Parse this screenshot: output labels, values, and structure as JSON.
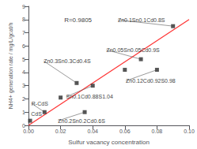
{
  "chart_data": {
    "type": "scatter",
    "xlabel": "Sulfur vacancy concentration",
    "ylabel": "NH4+ generation rate / mg/L/gcat/h",
    "series": [
      {
        "type": "line",
        "color": "#ff3333",
        "x": [
          0.0,
          0.1
        ],
        "values": [
          0.0,
          8.0
        ]
      },
      {
        "type": "scatter",
        "color": "#2a2a2a",
        "marker": "square",
        "x": [
          0.001,
          0.01,
          0.02,
          0.03,
          0.04,
          0.035,
          0.06,
          0.07,
          0.08,
          0.09
        ],
        "values": [
          0.35,
          1.0,
          2.1,
          3.2,
          3.0,
          1.0,
          4.2,
          5.0,
          4.2,
          7.5
        ]
      }
    ],
    "annotations": [
      {
        "text": "CdS",
        "x": 0.001,
        "y": 0.35
      },
      {
        "text": "R-CdS",
        "x": 0.01,
        "y": 1.0
      },
      {
        "text": "Zn0.3Sn0.3Cd0.4S",
        "x": 0.03,
        "y": 3.2
      },
      {
        "text": "Zn0.2Sn0.2Cd0.6S",
        "x": 0.035,
        "y": 1.0
      },
      {
        "text": "Sn0.1Cd0.88S1.04",
        "x": 0.04,
        "y": 3.0
      },
      {
        "text": "Zn0.05Sn0.05Cd0.9S",
        "x": 0.07,
        "y": 5.0
      },
      {
        "text": "Zn0.12Cd0.92S0.98",
        "x": 0.08,
        "y": 4.2
      },
      {
        "text": "Zn0.1Sn0.1Cd0.8S",
        "x": 0.09,
        "y": 7.5
      },
      {
        "text": "R=0.9805",
        "x": 0.02,
        "y": 7.6
      }
    ],
    "xlim": [
      0.0,
      0.1
    ],
    "ylim": [
      0.0,
      9.0
    ],
    "xticks": [
      {
        "value": 0.0,
        "label": "0.00"
      },
      {
        "value": 0.02,
        "label": "0.02"
      },
      {
        "value": 0.04,
        "label": "0.04"
      },
      {
        "value": 0.06,
        "label": "0.06"
      },
      {
        "value": 0.08,
        "label": "0.08"
      },
      {
        "value": 0.1,
        "label": "0.10"
      }
    ],
    "yticks": [
      0,
      1,
      2,
      3,
      4,
      5,
      6,
      7,
      8,
      9
    ],
    "grid": false
  }
}
